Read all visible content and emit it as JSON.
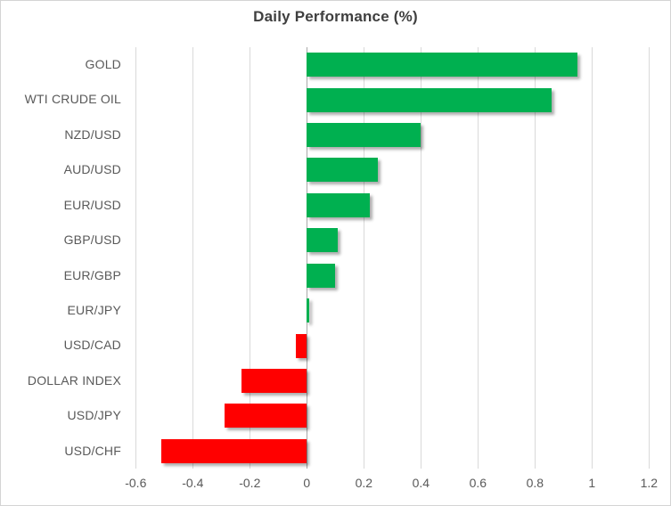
{
  "chart_data": {
    "type": "bar",
    "orientation": "horizontal",
    "title": "Daily Performance (%)",
    "categories": [
      "GOLD",
      "WTI CRUDE OIL",
      "NZD/USD",
      "AUD/USD",
      "EUR/USD",
      "GBP/USD",
      "EUR/GBP",
      "EUR/JPY",
      "USD/CAD",
      "DOLLAR INDEX",
      "USD/JPY",
      "USD/CHF"
    ],
    "values": [
      0.95,
      0.86,
      0.4,
      0.25,
      0.22,
      0.11,
      0.1,
      0.01,
      -0.04,
      -0.23,
      -0.29,
      -0.51
    ],
    "xlabel": "",
    "ylabel": "",
    "xlim": [
      -0.6,
      1.2
    ],
    "xticks": [
      -0.6,
      -0.4,
      -0.2,
      0,
      0.2,
      0.4,
      0.6,
      0.8,
      1,
      1.2
    ],
    "xtick_labels": [
      "-0.6",
      "-0.4",
      "-0.2",
      "0",
      "0.2",
      "0.4",
      "0.6",
      "0.8",
      "1",
      "1.2"
    ],
    "grid": true,
    "legend": false,
    "colors": {
      "positive": "#00B050",
      "negative": "#FF0000",
      "gridline": "#D9D9D9",
      "axis_line": "#A9A9A9",
      "tick_text": "#595959",
      "title_text": "#3F3F3F",
      "background": "#FFFFFF",
      "border": "#D4D4D4"
    }
  }
}
